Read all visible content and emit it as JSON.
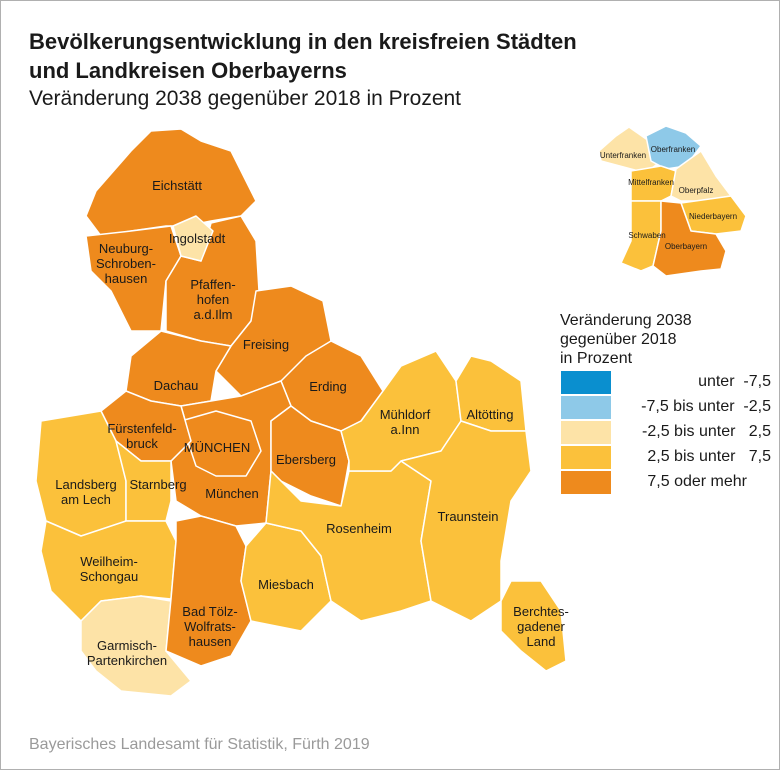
{
  "title_line1": "Bevölkerungsentwicklung in den kreisfreien Städten",
  "title_line2": "und Landkreisen Oberbayerns",
  "subtitle": "Veränderung 2038 gegenüber 2018 in Prozent",
  "colors": {
    "c1": "#0a8fcf",
    "c2": "#8ec9e8",
    "c3": "#fde3a7",
    "c4": "#fbc13b",
    "c5": "#ee8a1d"
  },
  "regions": {
    "eichstaett": "Eichstätt",
    "ingolstadt": "Ingolstadt",
    "neuburg": "Neuburg-\nSchroben-\nhausen",
    "pfaffenhofen": "Pfaffen-\nhofen\na.d.Ilm",
    "freising": "Freising",
    "erding": "Erding",
    "dachau": "Dachau",
    "fuerstenfeldbruck": "Fürstenfeld-\nbruck",
    "muenchen_stadt": "MÜNCHEN",
    "muenchen": "München",
    "ebersberg": "Ebersberg",
    "landsberg": "Landsberg\nam Lech",
    "starnberg": "Starnberg",
    "weilheim": "Weilheim-\nSchongau",
    "garmisch": "Garmisch-\nPartenkirchen",
    "badtoelz": "Bad Tölz-\nWolfrats-\nhausen",
    "miesbach": "Miesbach",
    "rosenheim": "Rosenheim",
    "muehldorf": "Mühldorf\na.Inn",
    "altoetting": "Altötting",
    "traunstein": "Traunstein",
    "berchtesgaden": "Berchtes-\ngadener\nLand"
  },
  "inset": {
    "unterfranken": "Unterfranken",
    "oberfranken": "Oberfranken",
    "mittelfranken": "Mittelfranken",
    "oberpfalz": "Oberpfalz",
    "niederbayern": "Niederbayern",
    "schwaben": "Schwaben",
    "oberbayern": "Oberbayern"
  },
  "legend": {
    "title": "Veränderung 2038\ngegenüber 2018\nin Prozent",
    "items": [
      "unter  -7,5",
      "-7,5 bis unter  -2,5",
      "-2,5 bis unter   2,5",
      "2,5 bis unter   7,5",
      "7,5 oder mehr"
    ]
  },
  "source": "Bayerisches Landesamt für Statistik, Fürth 2019"
}
